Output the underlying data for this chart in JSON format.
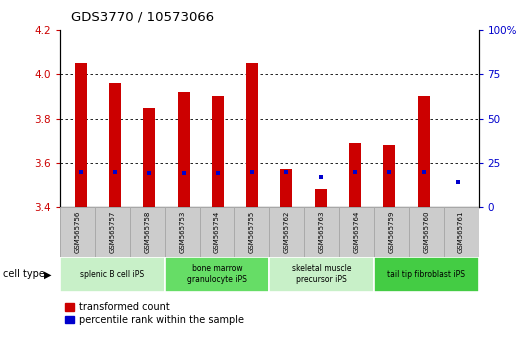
{
  "title": "GDS3770 / 10573066",
  "samples": [
    "GSM565756",
    "GSM565757",
    "GSM565758",
    "GSM565753",
    "GSM565754",
    "GSM565755",
    "GSM565762",
    "GSM565763",
    "GSM565764",
    "GSM565759",
    "GSM565760",
    "GSM565761"
  ],
  "transformed_count": [
    4.05,
    3.96,
    3.85,
    3.92,
    3.9,
    4.05,
    3.57,
    3.48,
    3.69,
    3.68,
    3.9,
    3.4
  ],
  "percentile_rank": [
    20,
    20,
    19,
    19,
    19,
    20,
    20,
    17,
    20,
    20,
    20,
    14
  ],
  "ylim_left": [
    3.4,
    4.2
  ],
  "ylim_right": [
    0,
    100
  ],
  "yticks_left": [
    3.4,
    3.6,
    3.8,
    4.0,
    4.2
  ],
  "yticks_right": [
    0,
    25,
    50,
    75,
    100
  ],
  "yticklabels_right": [
    "0",
    "25",
    "50",
    "75",
    "100%"
  ],
  "bar_color": "#cc0000",
  "dot_color": "#0000cc",
  "cell_types": [
    {
      "label": "splenic B cell iPS",
      "start": 0,
      "end": 3,
      "color": "#c8f0c8"
    },
    {
      "label": "bone marrow\ngranulocyte iPS",
      "start": 3,
      "end": 6,
      "color": "#66dd66"
    },
    {
      "label": "skeletal muscle\nprecursor iPS",
      "start": 6,
      "end": 9,
      "color": "#c8f0c8"
    },
    {
      "label": "tail tip fibroblast iPS",
      "start": 9,
      "end": 12,
      "color": "#44cc44"
    }
  ],
  "legend_red_label": "transformed count",
  "legend_blue_label": "percentile rank within the sample",
  "cell_type_label": "cell type",
  "bar_width": 0.35,
  "base_value": 3.4,
  "tick_label_color_left": "#cc0000",
  "tick_label_color_right": "#0000cc",
  "sample_box_color": "#cccccc",
  "sample_box_edge": "#aaaaaa"
}
